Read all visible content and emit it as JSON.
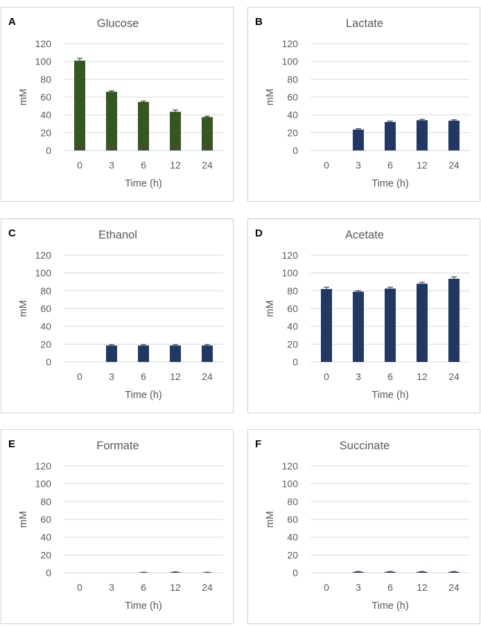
{
  "chart_data": [
    {
      "panel": "A",
      "type": "bar",
      "title": "Glucose",
      "xlabel": "Time (h)",
      "ylabel": "mM",
      "categories": [
        "0",
        "3",
        "6",
        "12",
        "24"
      ],
      "values": [
        101,
        66,
        54.5,
        43.5,
        37.5
      ],
      "errors": [
        2.5,
        1,
        1,
        2,
        1
      ],
      "ylim": [
        0,
        120
      ],
      "yticks": [
        "0",
        "20",
        "40",
        "60",
        "80",
        "100",
        "120"
      ],
      "color": "#375623",
      "grid": true,
      "legend": "none"
    },
    {
      "panel": "B",
      "type": "bar",
      "title": "Lactate",
      "xlabel": "Time (h)",
      "ylabel": "mM",
      "categories": [
        "0",
        "3",
        "6",
        "12",
        "24"
      ],
      "values": [
        0,
        23.5,
        32,
        34,
        33.5
      ],
      "errors": [
        0,
        1,
        1,
        1,
        1
      ],
      "ylim": [
        0,
        120
      ],
      "yticks": [
        "0",
        "20",
        "40",
        "60",
        "80",
        "100",
        "120"
      ],
      "color": "#203864",
      "grid": true,
      "legend": "none"
    },
    {
      "panel": "C",
      "type": "bar",
      "title": "Ethanol",
      "xlabel": "Time (h)",
      "ylabel": "mM",
      "categories": [
        "0",
        "3",
        "6",
        "12",
        "24"
      ],
      "values": [
        0,
        18.5,
        18.5,
        18.5,
        18.5
      ],
      "errors": [
        0,
        1,
        1,
        1,
        1
      ],
      "ylim": [
        0,
        120
      ],
      "yticks": [
        "0",
        "20",
        "40",
        "60",
        "80",
        "100",
        "120"
      ],
      "color": "#203864",
      "grid": true,
      "legend": "none"
    },
    {
      "panel": "D",
      "type": "bar",
      "title": "Acetate",
      "xlabel": "Time (h)",
      "ylabel": "mM",
      "categories": [
        "0",
        "3",
        "6",
        "12",
        "24"
      ],
      "values": [
        82,
        79,
        82.5,
        88,
        93.5
      ],
      "errors": [
        2,
        1,
        1.5,
        1.5,
        2
      ],
      "ylim": [
        0,
        120
      ],
      "yticks": [
        "0",
        "20",
        "40",
        "60",
        "80",
        "100",
        "120"
      ],
      "color": "#203864",
      "grid": true,
      "legend": "none"
    },
    {
      "panel": "E",
      "type": "bar",
      "title": "Formate",
      "xlabel": "Time (h)",
      "ylabel": "mM",
      "categories": [
        "0",
        "3",
        "6",
        "12",
        "24"
      ],
      "values": [
        0,
        0,
        0.3,
        0.6,
        0.3
      ],
      "errors": [
        0,
        0,
        0.3,
        0.4,
        0.3
      ],
      "ylim": [
        0,
        120
      ],
      "yticks": [
        "0",
        "20",
        "40",
        "60",
        "80",
        "100",
        "120"
      ],
      "color": "#203864",
      "grid": true,
      "legend": "none"
    },
    {
      "panel": "F",
      "type": "bar",
      "title": "Succinate",
      "xlabel": "Time (h)",
      "ylabel": "mM",
      "categories": [
        "0",
        "3",
        "6",
        "12",
        "24"
      ],
      "values": [
        0,
        1,
        1,
        1,
        1
      ],
      "errors": [
        0,
        0.4,
        0.4,
        0.4,
        0.4
      ],
      "ylim": [
        0,
        120
      ],
      "yticks": [
        "0",
        "20",
        "40",
        "60",
        "80",
        "100",
        "120"
      ],
      "color": "#203864",
      "grid": true,
      "legend": "none"
    }
  ]
}
